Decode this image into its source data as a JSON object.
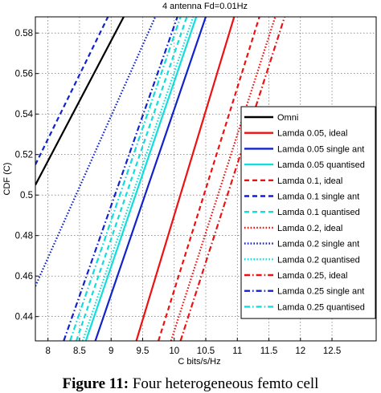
{
  "chart_data": {
    "type": "line",
    "title": "4 antenna Fd=0.01Hz",
    "xlabel": "C bits/s/Hz",
    "ylabel": "CDF (C)",
    "xlim": [
      7.8,
      13.2
    ],
    "ylim": [
      0.428,
      0.588
    ],
    "xticks": [
      "8",
      "8.5",
      "9",
      "9.5",
      "10",
      "10.5",
      "11",
      "11.5",
      "12",
      "12.5"
    ],
    "yticks": [
      "0.44",
      "0.46",
      "0.48",
      "0.5",
      "0.52",
      "0.54",
      "0.56",
      "0.58"
    ],
    "grid": true,
    "legend_position": "right",
    "series": [
      {
        "name": "Omni",
        "color": "#000000",
        "dash": "solid",
        "x": [
          7.8,
          9.2
        ],
        "y": [
          0.505,
          0.588
        ]
      },
      {
        "name": "Lamda 0.05, ideal",
        "color": "#ee1111",
        "dash": "solid",
        "x": [
          9.4,
          10.95
        ],
        "y": [
          0.428,
          0.588
        ]
      },
      {
        "name": "Lamda 0.05 single ant",
        "color": "#1122cc",
        "dash": "solid",
        "x": [
          8.75,
          10.5
        ],
        "y": [
          0.428,
          0.588
        ]
      },
      {
        "name": "Lamda 0.05 quantised",
        "color": "#11dddd",
        "dash": "solid",
        "x": [
          8.6,
          10.35
        ],
        "y": [
          0.428,
          0.588
        ]
      },
      {
        "name": "Lamda 0.1, ideal",
        "color": "#ee1111",
        "dash": "dashed",
        "x": [
          9.75,
          11.35
        ],
        "y": [
          0.428,
          0.588
        ]
      },
      {
        "name": "Lamda 0.1 single ant",
        "color": "#1122cc",
        "dash": "dashed",
        "x": [
          7.8,
          8.95
        ],
        "y": [
          0.515,
          0.588
        ]
      },
      {
        "name": "Lamda 0.1 quantised",
        "color": "#11dddd",
        "dash": "dashed",
        "x": [
          8.45,
          10.2
        ],
        "y": [
          0.428,
          0.588
        ]
      },
      {
        "name": "Lamda 0.2, ideal",
        "color": "#ee1111",
        "dash": "dotted",
        "x": [
          9.95,
          11.6
        ],
        "y": [
          0.428,
          0.588
        ]
      },
      {
        "name": "Lamda 0.2 single ant",
        "color": "#1122cc",
        "dash": "dotted",
        "x": [
          7.8,
          9.7
        ],
        "y": [
          0.455,
          0.588
        ]
      },
      {
        "name": "Lamda 0.2 quantised",
        "color": "#11dddd",
        "dash": "dotted",
        "x": [
          8.55,
          10.3
        ],
        "y": [
          0.428,
          0.588
        ]
      },
      {
        "name": "Lamda 0.25, ideal",
        "color": "#ee1111",
        "dash": "dashdot",
        "x": [
          10.1,
          11.75
        ],
        "y": [
          0.428,
          0.588
        ]
      },
      {
        "name": "Lamda 0.25 single ant",
        "color": "#1122cc",
        "dash": "dashdot",
        "x": [
          8.25,
          10.05
        ],
        "y": [
          0.428,
          0.588
        ]
      },
      {
        "name": "Lamda 0.25 quantised",
        "color": "#11dddd",
        "dash": "dashdot",
        "x": [
          8.35,
          10.1
        ],
        "y": [
          0.428,
          0.588
        ]
      }
    ]
  },
  "caption": {
    "label": "Figure 11:",
    "text": "Four heterogeneous femto cell"
  }
}
